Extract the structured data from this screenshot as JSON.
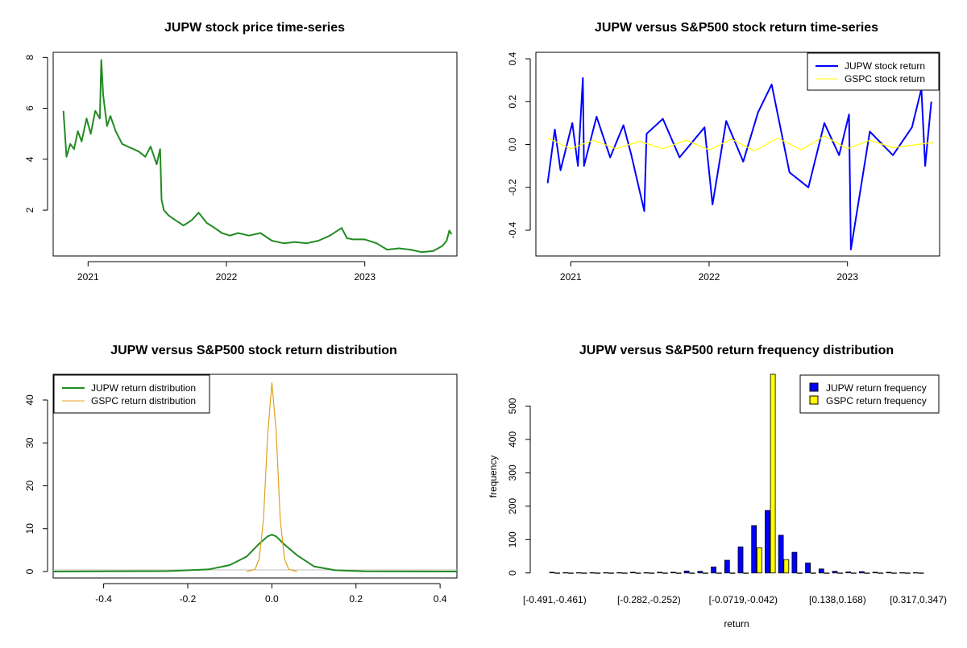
{
  "colors": {
    "green": "#228b22",
    "blue": "#0000ff",
    "yellow": "#ffff00",
    "orange": "#e0a020",
    "gray": "#bebebe"
  },
  "chart_data": [
    {
      "id": "price",
      "type": "line",
      "title": "JUPW stock price time-series",
      "xlabel": "",
      "ylabel": "",
      "x_ticks": [
        "2021",
        "2022",
        "2023"
      ],
      "y_ticks": [
        2,
        4,
        6,
        8
      ],
      "xlim": [
        "2020-10-01",
        "2023-09-01"
      ],
      "ylim": [
        0.2,
        8.2
      ],
      "grid": false,
      "series": [
        {
          "color": "#228b22",
          "x": [
            "2020-10-28",
            "2020-11-05",
            "2020-11-15",
            "2020-11-25",
            "2020-12-05",
            "2020-12-15",
            "2020-12-28",
            "2021-01-08",
            "2021-01-20",
            "2021-02-01",
            "2021-02-05",
            "2021-02-10",
            "2021-02-20",
            "2021-03-01",
            "2021-03-15",
            "2021-04-01",
            "2021-04-15",
            "2021-05-01",
            "2021-05-15",
            "2021-06-01",
            "2021-06-15",
            "2021-07-01",
            "2021-07-10",
            "2021-07-14",
            "2021-07-20",
            "2021-08-01",
            "2021-08-20",
            "2021-09-10",
            "2021-10-01",
            "2021-10-20",
            "2021-11-10",
            "2021-12-01",
            "2021-12-20",
            "2022-01-10",
            "2022-02-01",
            "2022-03-01",
            "2022-04-01",
            "2022-05-01",
            "2022-06-01",
            "2022-07-01",
            "2022-08-01",
            "2022-09-01",
            "2022-10-01",
            "2022-11-01",
            "2022-11-15",
            "2022-12-01",
            "2023-01-01",
            "2023-02-01",
            "2023-03-01",
            "2023-04-01",
            "2023-05-01",
            "2023-06-01",
            "2023-07-01",
            "2023-07-25",
            "2023-08-05",
            "2023-08-12",
            "2023-08-18"
          ],
          "values": [
            5.9,
            4.1,
            4.6,
            4.4,
            5.1,
            4.7,
            5.6,
            5.0,
            5.9,
            5.6,
            7.9,
            6.5,
            5.3,
            5.7,
            5.1,
            4.6,
            4.5,
            4.4,
            4.3,
            4.1,
            4.5,
            3.8,
            4.4,
            2.4,
            2.0,
            1.8,
            1.6,
            1.4,
            1.6,
            1.9,
            1.5,
            1.3,
            1.1,
            1.0,
            1.1,
            1.0,
            1.1,
            0.8,
            0.7,
            0.75,
            0.7,
            0.8,
            1.0,
            1.3,
            0.9,
            0.85,
            0.85,
            0.7,
            0.45,
            0.5,
            0.45,
            0.35,
            0.4,
            0.6,
            0.8,
            1.2,
            1.05
          ]
        }
      ]
    },
    {
      "id": "returns",
      "type": "line",
      "title": "JUPW versus S&P500 stock return time-series",
      "xlabel": "",
      "ylabel": "",
      "x_ticks": [
        "2021",
        "2022",
        "2023"
      ],
      "y_ticks": [
        -0.4,
        -0.2,
        0.0,
        0.2,
        0.4
      ],
      "y_tick_labels": [
        "-0.4",
        "-0.2",
        "0.0",
        "0.2",
        "0.4"
      ],
      "xlim": [
        "2020-10-01",
        "2023-09-01"
      ],
      "ylim": [
        -0.52,
        0.43
      ],
      "grid": false,
      "legend_position": "top-right",
      "series": [
        {
          "name": "JUPW stock return",
          "color": "#0000ff",
          "x": [
            "2020-11-01",
            "2020-11-20",
            "2020-12-05",
            "2021-01-05",
            "2021-01-20",
            "2021-02-02",
            "2021-02-05",
            "2021-03-10",
            "2021-04-15",
            "2021-05-20",
            "2021-06-10",
            "2021-07-14",
            "2021-07-20",
            "2021-09-01",
            "2021-10-15",
            "2021-12-20",
            "2022-01-10",
            "2022-02-15",
            "2022-04-01",
            "2022-05-10",
            "2022-06-15",
            "2022-08-01",
            "2022-09-20",
            "2022-11-01",
            "2022-12-10",
            "2023-01-05",
            "2023-01-10",
            "2023-03-01",
            "2023-05-01",
            "2023-06-20",
            "2023-07-15",
            "2023-07-25",
            "2023-08-10"
          ],
          "values": [
            -0.18,
            0.07,
            -0.12,
            0.1,
            -0.1,
            0.31,
            -0.1,
            0.13,
            -0.06,
            0.09,
            -0.05,
            -0.31,
            0.05,
            0.12,
            -0.06,
            0.08,
            -0.28,
            0.11,
            -0.08,
            0.15,
            0.28,
            -0.13,
            -0.2,
            0.1,
            -0.05,
            0.14,
            -0.49,
            0.06,
            -0.05,
            0.08,
            0.26,
            -0.1,
            0.2
          ]
        },
        {
          "name": "GSPC stock return",
          "color": "#ffff00",
          "x": [
            "2020-11-01",
            "2021-01-01",
            "2021-03-01",
            "2021-05-01",
            "2021-07-01",
            "2021-09-01",
            "2021-11-01",
            "2022-01-01",
            "2022-03-01",
            "2022-05-01",
            "2022-07-01",
            "2022-09-01",
            "2022-11-01",
            "2023-01-01",
            "2023-03-01",
            "2023-05-01",
            "2023-08-15"
          ],
          "values": [
            0.03,
            -0.02,
            0.02,
            -0.02,
            0.015,
            -0.02,
            0.02,
            -0.025,
            0.025,
            -0.03,
            0.03,
            -0.025,
            0.04,
            -0.02,
            0.02,
            -0.015,
            0.01
          ]
        }
      ]
    },
    {
      "id": "density",
      "type": "line",
      "title": "JUPW versus S&P500 stock return distribution",
      "xlabel": "",
      "ylabel": "",
      "x_ticks": [
        -0.4,
        -0.2,
        0.0,
        0.2,
        0.4
      ],
      "x_tick_labels": [
        "-0.4",
        "-0.2",
        "0.0",
        "0.2",
        "0.4"
      ],
      "y_ticks": [
        0,
        10,
        20,
        30,
        40
      ],
      "xlim": [
        -0.52,
        0.44
      ],
      "ylim": [
        -1.5,
        46
      ],
      "grid": false,
      "legend_position": "top-left",
      "series": [
        {
          "name": "JUPW return distribution",
          "color": "#228b22",
          "x": [
            -0.52,
            -0.25,
            -0.15,
            -0.1,
            -0.06,
            -0.03,
            -0.01,
            0.0,
            0.01,
            0.03,
            0.06,
            0.1,
            0.15,
            0.22,
            0.44
          ],
          "values": [
            0,
            0.1,
            0.5,
            1.5,
            3.5,
            6.5,
            8.2,
            8.6,
            8.2,
            6.3,
            3.8,
            1.2,
            0.3,
            0.05,
            0
          ]
        },
        {
          "name": "GSPC return distribution",
          "color": "#e0a020",
          "x": [
            -0.06,
            -0.04,
            -0.03,
            -0.02,
            -0.01,
            0.0,
            0.01,
            0.02,
            0.03,
            0.04,
            0.06
          ],
          "values": [
            0,
            0.5,
            3,
            12,
            32,
            44,
            33,
            12,
            3,
            0.5,
            0
          ]
        }
      ]
    },
    {
      "id": "histogram",
      "type": "bar",
      "title": "JUPW versus S&P500 return frequency distribution",
      "xlabel": "return",
      "ylabel": "frequency",
      "y_ticks": [
        0,
        100,
        200,
        300,
        400,
        500
      ],
      "ylim": [
        -15,
        595
      ],
      "grid": false,
      "legend_position": "top-right",
      "x_tick_labels": [
        "[-0.491,-0.461)",
        "[-0.282,-0.252)",
        "[-0.0719,-0.042)",
        "[0.138,0.168)",
        "[0.317,0.347)"
      ],
      "x_tick_bin_index": [
        0,
        7,
        14,
        21,
        27
      ],
      "bin_count": 28,
      "series": [
        {
          "name": "JUPW return frequency",
          "color": "#0000ff",
          "values": [
            2,
            1,
            1,
            1,
            1,
            1,
            2,
            1,
            2,
            2,
            6,
            5,
            18,
            38,
            78,
            142,
            187,
            113,
            62,
            30,
            12,
            5,
            3,
            4,
            2,
            2,
            1,
            1
          ]
        },
        {
          "name": "GSPC return frequency",
          "color": "#ffff00",
          "values": [
            0,
            0,
            0,
            0,
            0,
            0,
            0,
            0,
            0,
            0,
            0,
            0,
            0,
            0,
            0,
            75,
            600,
            40,
            0,
            0,
            0,
            0,
            0,
            0,
            0,
            0,
            0,
            0
          ]
        }
      ]
    }
  ]
}
